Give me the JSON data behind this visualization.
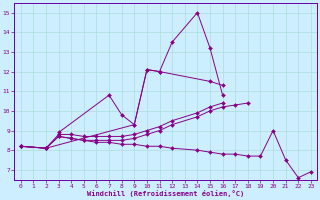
{
  "xlabel": "Windchill (Refroidissement éolien,°C)",
  "bg_color": "#cceeff",
  "grid_color": "#aadddd",
  "line_color": "#880088",
  "spine_color": "#6600aa",
  "xlim": [
    -0.5,
    23.5
  ],
  "ylim": [
    6.5,
    15.5
  ],
  "xticks": [
    0,
    1,
    2,
    3,
    4,
    5,
    6,
    7,
    8,
    9,
    10,
    11,
    12,
    13,
    14,
    15,
    16,
    17,
    18,
    19,
    20,
    21,
    22,
    23
  ],
  "yticks": [
    7,
    8,
    9,
    10,
    11,
    12,
    13,
    14,
    15
  ],
  "lines": [
    {
      "x": [
        0,
        2,
        9,
        10,
        11,
        12,
        14,
        15,
        16
      ],
      "y": [
        8.2,
        8.1,
        9.3,
        12.1,
        12.0,
        13.5,
        15.0,
        13.2,
        10.8
      ]
    },
    {
      "x": [
        3,
        7,
        8,
        9,
        10,
        11,
        15,
        16
      ],
      "y": [
        8.9,
        10.8,
        9.8,
        9.3,
        12.1,
        12.0,
        11.5,
        11.3
      ]
    },
    {
      "x": [
        0,
        2,
        3,
        4,
        5,
        6,
        7,
        8,
        9,
        10,
        11,
        12,
        14,
        15,
        16
      ],
      "y": [
        8.2,
        8.1,
        8.8,
        8.8,
        8.7,
        8.7,
        8.7,
        8.7,
        8.8,
        9.0,
        9.2,
        9.5,
        9.9,
        10.2,
        10.4
      ]
    },
    {
      "x": [
        0,
        2,
        3,
        4,
        5,
        6,
        7,
        8,
        9,
        10,
        11,
        12,
        14,
        15,
        16,
        17,
        18,
        19,
        20,
        21,
        22,
        23
      ],
      "y": [
        8.2,
        8.1,
        8.7,
        8.6,
        8.5,
        8.4,
        8.4,
        8.3,
        8.3,
        8.2,
        8.2,
        8.1,
        8.0,
        7.9,
        7.8,
        7.8,
        7.7,
        7.7,
        9.0,
        7.5,
        6.6,
        6.9
      ]
    },
    {
      "x": [
        0,
        2,
        3,
        4,
        5,
        6,
        7,
        8,
        9,
        10,
        11,
        12,
        14,
        15,
        16,
        17,
        18
      ],
      "y": [
        8.2,
        8.1,
        8.7,
        8.6,
        8.5,
        8.5,
        8.5,
        8.5,
        8.6,
        8.8,
        9.0,
        9.3,
        9.7,
        10.0,
        10.2,
        10.3,
        10.4
      ]
    }
  ]
}
